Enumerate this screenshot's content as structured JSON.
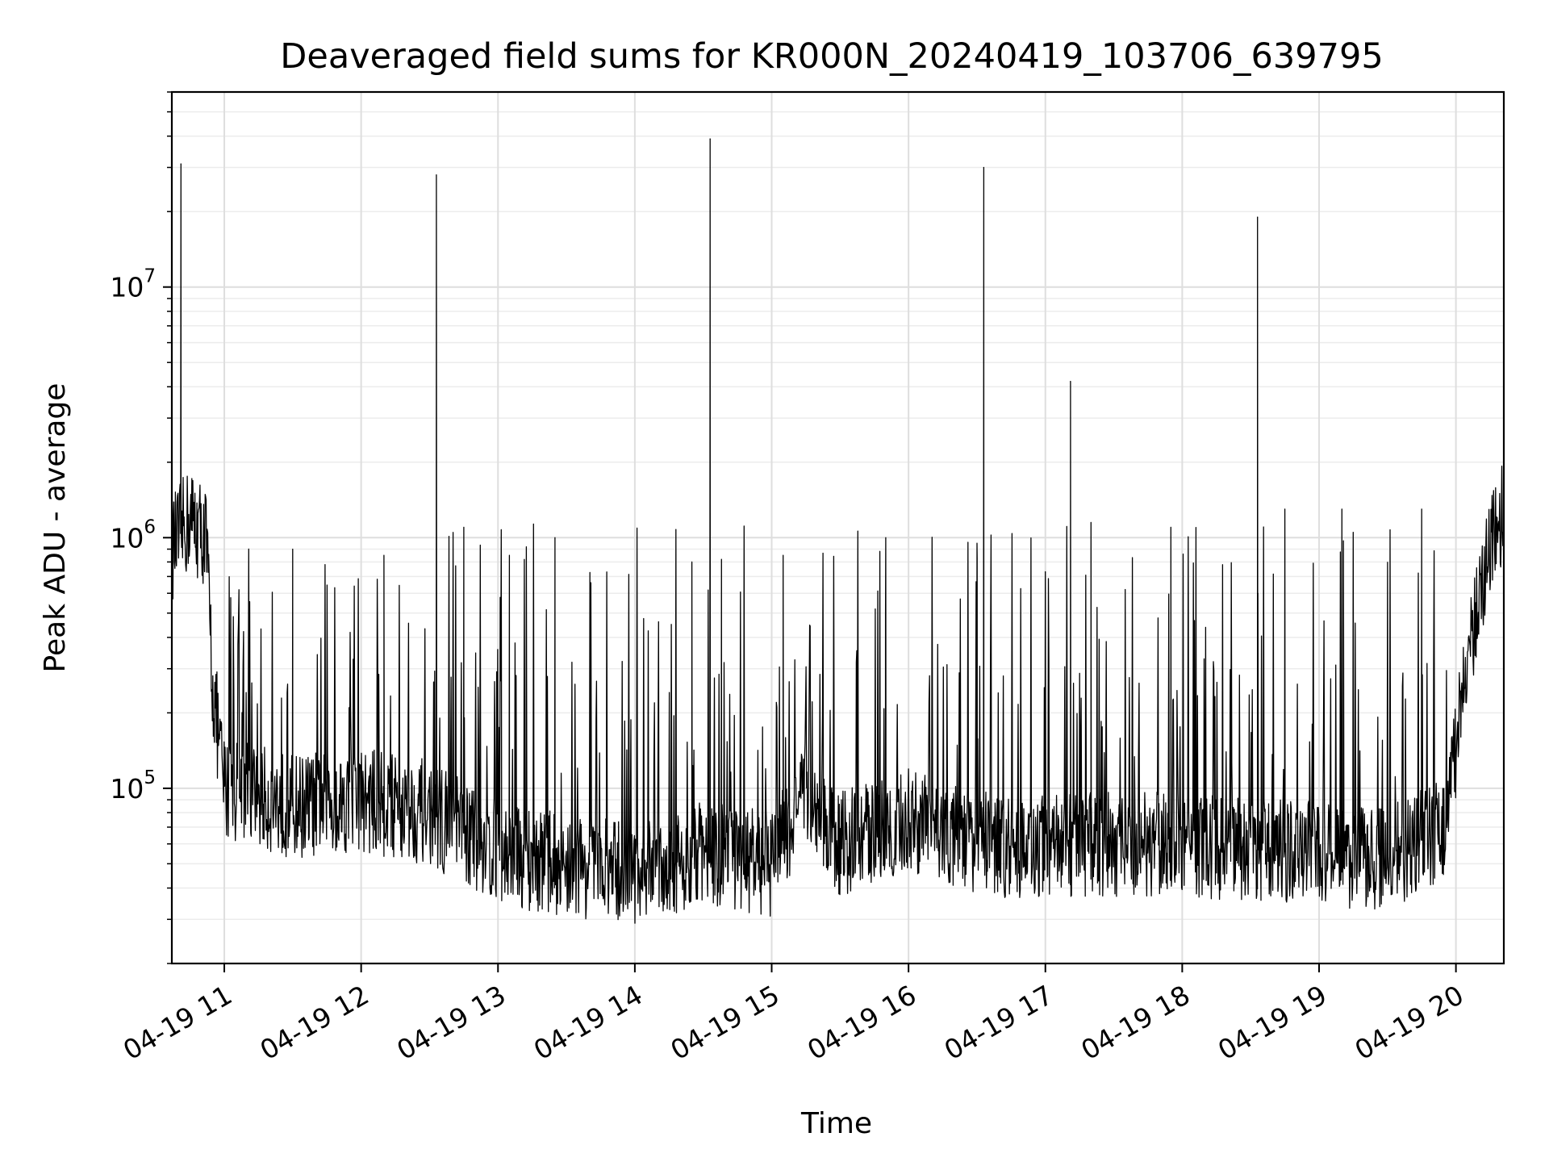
{
  "chart_data": {
    "type": "line",
    "title": "Deaveraged field sums for KR000N_20240419_103706_639795",
    "xlabel": "Time",
    "ylabel": "Peak ADU - average",
    "y_scale": "log",
    "ylim": [
      20000,
      60000000
    ],
    "xlim": [
      "04-19 10:37",
      "04-19 20:21"
    ],
    "grid": true,
    "line_color": "#000000",
    "x_ticks": [
      {
        "t": "04-19 11:00",
        "label": "04-19 11"
      },
      {
        "t": "04-19 12:00",
        "label": "04-19 12"
      },
      {
        "t": "04-19 13:00",
        "label": "04-19 13"
      },
      {
        "t": "04-19 14:00",
        "label": "04-19 14"
      },
      {
        "t": "04-19 15:00",
        "label": "04-19 15"
      },
      {
        "t": "04-19 16:00",
        "label": "04-19 16"
      },
      {
        "t": "04-19 17:00",
        "label": "04-19 17"
      },
      {
        "t": "04-19 18:00",
        "label": "04-19 18"
      },
      {
        "t": "04-19 19:00",
        "label": "04-19 19"
      },
      {
        "t": "04-19 20:00",
        "label": "04-19 20"
      }
    ],
    "y_ticks": [
      {
        "value": 100000,
        "base": "10",
        "exp": "5"
      },
      {
        "value": 1000000,
        "base": "10",
        "exp": "6"
      },
      {
        "value": 10000000,
        "base": "10",
        "exp": "7"
      }
    ],
    "baseline": [
      {
        "t": "04-19 10:37",
        "y": 900000
      },
      {
        "t": "04-19 10:45",
        "y": 1200000
      },
      {
        "t": "04-19 10:52",
        "y": 1000000
      },
      {
        "t": "04-19 10:55",
        "y": 250000
      },
      {
        "t": "04-19 11:00",
        "y": 100000
      },
      {
        "t": "04-19 11:30",
        "y": 85000
      },
      {
        "t": "04-19 12:00",
        "y": 90000
      },
      {
        "t": "04-19 12:30",
        "y": 80000
      },
      {
        "t": "04-19 13:00",
        "y": 55000
      },
      {
        "t": "04-19 13:30",
        "y": 50000
      },
      {
        "t": "04-19 14:00",
        "y": 45000
      },
      {
        "t": "04-19 14:30",
        "y": 55000
      },
      {
        "t": "04-19 15:00",
        "y": 50000
      },
      {
        "t": "04-19 15:15",
        "y": 95000
      },
      {
        "t": "04-19 15:30",
        "y": 60000
      },
      {
        "t": "04-19 16:00",
        "y": 75000
      },
      {
        "t": "04-19 16:30",
        "y": 60000
      },
      {
        "t": "04-19 17:00",
        "y": 58000
      },
      {
        "t": "04-19 17:30",
        "y": 60000
      },
      {
        "t": "04-19 18:00",
        "y": 60000
      },
      {
        "t": "04-19 18:30",
        "y": 57000
      },
      {
        "t": "04-19 19:00",
        "y": 55000
      },
      {
        "t": "04-19 19:30",
        "y": 52000
      },
      {
        "t": "04-19 19:55",
        "y": 70000
      },
      {
        "t": "04-19 20:00",
        "y": 150000
      },
      {
        "t": "04-19 20:05",
        "y": 300000
      },
      {
        "t": "04-19 20:12",
        "y": 700000
      },
      {
        "t": "04-19 20:21",
        "y": 1300000
      }
    ],
    "major_spikes": [
      {
        "t": "04-19 10:41",
        "y": 31000000
      },
      {
        "t": "04-19 12:33",
        "y": 28000000
      },
      {
        "t": "04-19 14:33",
        "y": 39000000
      },
      {
        "t": "04-19 16:33",
        "y": 30000000
      },
      {
        "t": "04-19 17:11",
        "y": 4200000
      },
      {
        "t": "04-19 18:33",
        "y": 19000000
      }
    ],
    "secondary_spikes": [
      {
        "t": "04-19 11:30",
        "y": 900000
      },
      {
        "t": "04-19 12:10",
        "y": 850000
      },
      {
        "t": "04-19 12:45",
        "y": 1100000
      },
      {
        "t": "04-19 13:05",
        "y": 850000
      },
      {
        "t": "04-19 13:25",
        "y": 1000000
      },
      {
        "t": "04-19 14:25",
        "y": 800000
      },
      {
        "t": "04-19 14:38",
        "y": 820000
      },
      {
        "t": "04-19 15:05",
        "y": 850000
      },
      {
        "t": "04-19 15:50",
        "y": 1000000
      },
      {
        "t": "04-19 16:30",
        "y": 950000
      },
      {
        "t": "04-19 17:20",
        "y": 1150000
      },
      {
        "t": "04-19 17:55",
        "y": 1100000
      },
      {
        "t": "04-19 18:45",
        "y": 1300000
      },
      {
        "t": "04-19 19:10",
        "y": 1300000
      },
      {
        "t": "04-19 19:45",
        "y": 1300000
      }
    ]
  }
}
